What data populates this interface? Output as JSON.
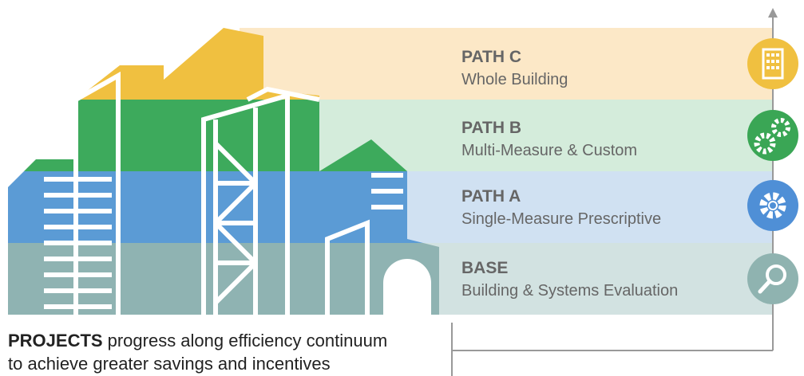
{
  "bands": [
    {
      "title": "PATH C",
      "subtitle": "Whole Building"
    },
    {
      "title": "PATH B",
      "subtitle": "Multi-Measure & Custom"
    },
    {
      "title": "PATH A",
      "subtitle": "Single-Measure Prescriptive"
    },
    {
      "title": "BASE",
      "subtitle": "Building & Systems Evaluation"
    }
  ],
  "footer": {
    "bold": "PROJECTS",
    "line1": "progress along efficiency continuum",
    "line2": "to achieve greater savings and incentives"
  }
}
